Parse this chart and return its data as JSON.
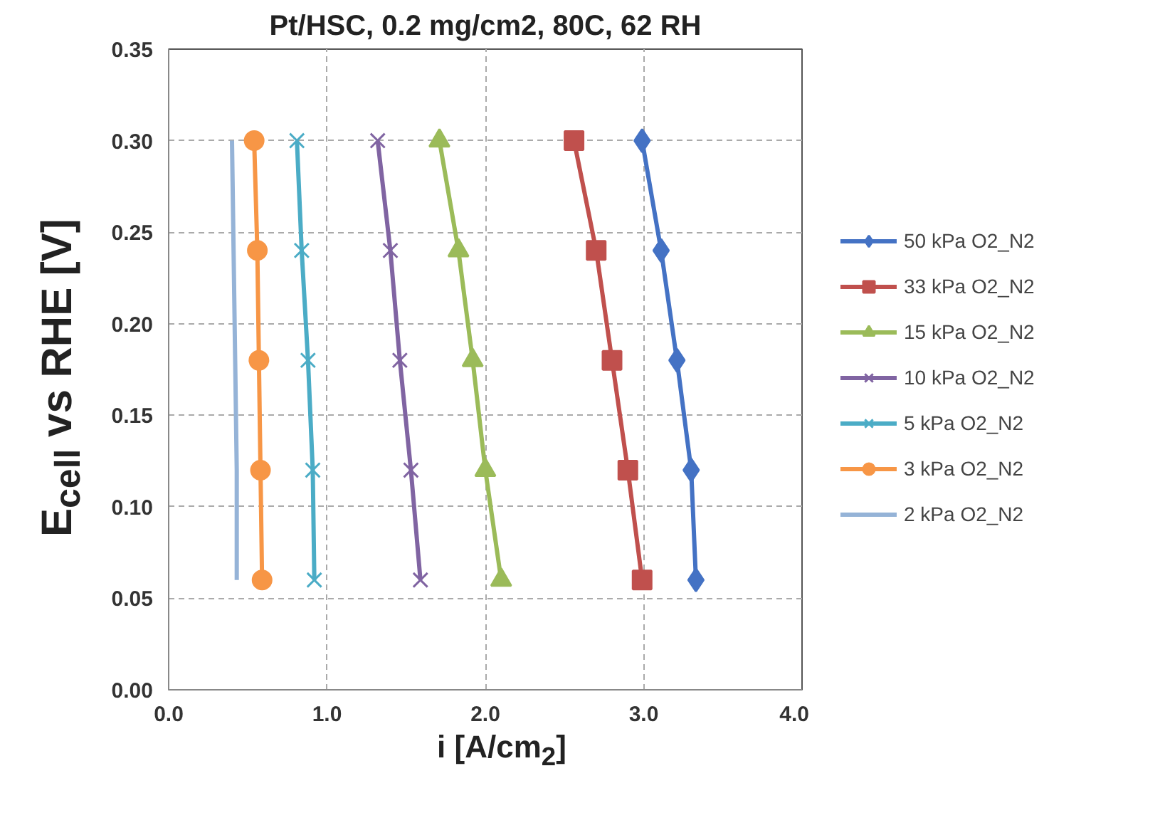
{
  "chart_data": {
    "type": "line",
    "title": "Pt/HSC, 0.2 mg/cm2, 80C, 62 RH",
    "xlabel": "i [A/cm$_{2}$]",
    "ylabel": "E$_{cell}$ vs RHE [V]",
    "xlim": [
      0,
      4
    ],
    "xticks": [
      {
        "value": 0,
        "label": "0.0"
      },
      {
        "value": 1,
        "label": "1.0"
      },
      {
        "value": 2,
        "label": "2.0"
      },
      {
        "value": 3,
        "label": "3.0"
      },
      {
        "value": 4,
        "label": "4.0"
      }
    ],
    "ylim": [
      0,
      0.35
    ],
    "yticks": [
      {
        "value": 0,
        "label": "0.00"
      },
      {
        "value": 0.05,
        "label": "0.05"
      },
      {
        "value": 0.1,
        "label": "0.10"
      },
      {
        "value": 0.15,
        "label": "0.15"
      },
      {
        "value": 0.2,
        "label": "0.20"
      },
      {
        "value": 0.25,
        "label": "0.25"
      },
      {
        "value": 0.3,
        "label": "0.30"
      },
      {
        "value": 0.35,
        "label": "0.35"
      }
    ],
    "grid": true,
    "legend": "right",
    "line_style": "solid",
    "series": [
      {
        "name": "50 kPa O2_N2",
        "color": "#4472c4",
        "marker": "diamond",
        "x": [
          2.99,
          3.11,
          3.21,
          3.3,
          3.33
        ],
        "values": [
          0.3,
          0.24,
          0.18,
          0.12,
          0.06
        ]
      },
      {
        "name": "33 kPa O2_N2",
        "color": "#c0504d",
        "marker": "square",
        "x": [
          2.56,
          2.7,
          2.8,
          2.9,
          2.99
        ],
        "values": [
          0.3,
          0.24,
          0.18,
          0.12,
          0.06
        ]
      },
      {
        "name": "15 kPa O2_N2",
        "color": "#9bbb59",
        "marker": "triangle",
        "x": [
          1.71,
          1.83,
          1.92,
          2.0,
          2.1
        ],
        "values": [
          0.3,
          0.24,
          0.18,
          0.12,
          0.06
        ]
      },
      {
        "name": "10 kPa O2_N2",
        "color": "#8064a2",
        "marker": "cross",
        "x": [
          1.32,
          1.4,
          1.46,
          1.53,
          1.59
        ],
        "values": [
          0.3,
          0.24,
          0.18,
          0.12,
          0.06
        ]
      },
      {
        "name": "5 kPa O2_N2",
        "color": "#4bacc6",
        "marker": "cross",
        "x": [
          0.81,
          0.84,
          0.88,
          0.91,
          0.92
        ],
        "values": [
          0.3,
          0.24,
          0.18,
          0.12,
          0.06
        ]
      },
      {
        "name": "3 kPa O2_N2",
        "color": "#f79646",
        "marker": "circle",
        "x": [
          0.54,
          0.56,
          0.57,
          0.58,
          0.59
        ],
        "values": [
          0.3,
          0.24,
          0.18,
          0.12,
          0.06
        ]
      },
      {
        "name": "2 kPa O2_N2",
        "color": "#95b3d7",
        "x": [
          0.4,
          0.41,
          0.42,
          0.43,
          0.43
        ],
        "values": [
          0.3,
          0.24,
          0.18,
          0.12,
          0.06
        ]
      }
    ]
  }
}
